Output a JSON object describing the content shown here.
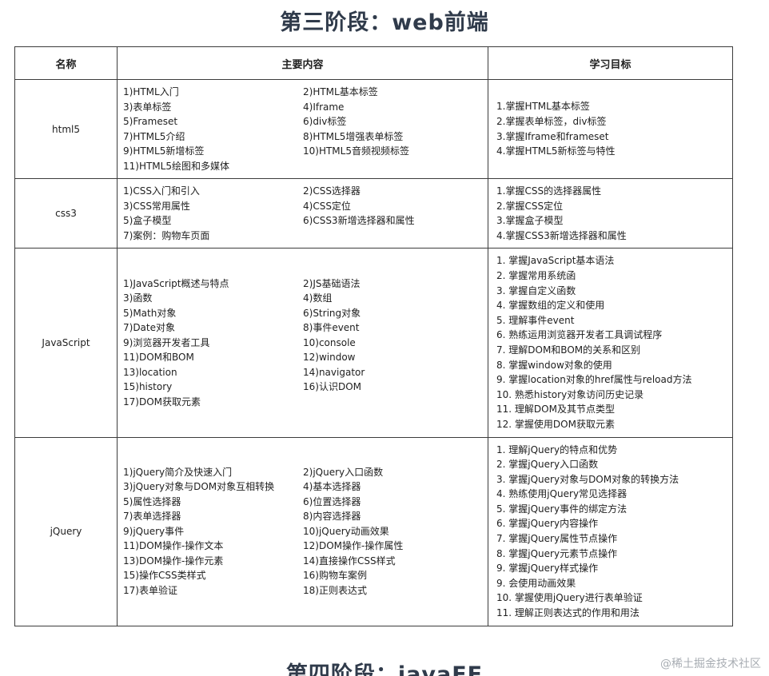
{
  "page": {
    "title": "第三阶段：web前端",
    "next_title": "第四阶段：javaEE",
    "watermark": "@稀土掘金技术社区"
  },
  "table": {
    "headers": [
      "名称",
      "主要内容",
      "学习目标"
    ],
    "rows": [
      {
        "name": "html5",
        "content_left": [
          "1)HTML入门",
          "3)表单标签",
          "5)Frameset",
          "7)HTML5介绍",
          "9)HTML5新增标签",
          "11)HTML5绘图和多媒体"
        ],
        "content_right": [
          "2)HTML基本标签",
          "4)Iframe",
          "6)div标签",
          "8)HTML5增强表单标签",
          "10)HTML5音频视频标签"
        ],
        "objectives": [
          "1.掌握HTML基本标签",
          "2.掌握表单标签，div标签",
          "3.掌握Iframe和frameset",
          "4.掌握HTML5新标签与特性"
        ]
      },
      {
        "name": "css3",
        "content_left": [
          "1)CSS入门和引入",
          "3)CSS常用属性",
          "5)盒子模型",
          "7)案例：购物车页面"
        ],
        "content_right": [
          "2)CSS选择器",
          "4)CSS定位",
          "6)CSS3新增选择器和属性"
        ],
        "objectives": [
          "1.掌握CSS的选择器属性",
          "2.掌握CSS定位",
          "3.掌握盒子模型",
          "4.掌握CSS3新增选择器和属性"
        ]
      },
      {
        "name": "JavaScript",
        "content_left": [
          "1)JavaScript概述与特点",
          "3)函数",
          "5)Math对象",
          "7)Date对象",
          "9)浏览器开发者工具",
          "11)DOM和BOM",
          "13)location",
          "15)history",
          "17)DOM获取元素"
        ],
        "content_right": [
          "2)JS基础语法",
          "4)数组",
          "6)String对象",
          "8)事件event",
          "10)console",
          "12)window",
          "14)navigator",
          "16)认识DOM"
        ],
        "objectives": [
          "1. 掌握JavaScript基本语法",
          "2. 掌握常用系统函",
          "3. 掌握自定义函数",
          "4. 掌握数组的定义和使用",
          "5. 理解事件event",
          "6. 熟练运用浏览器开发者工具调试程序",
          "7. 理解DOM和BOM的关系和区别",
          "8. 掌握window对象的使用",
          "9. 掌握location对象的href属性与reload方法",
          "10. 熟悉history对象访问历史记录",
          "11. 理解DOM及其节点类型",
          "12. 掌握使用DOM获取元素"
        ]
      },
      {
        "name": "jQuery",
        "content_left": [
          "1)jQuery简介及快速入门",
          "3)jQuery对象与DOM对象互相转换",
          "5)属性选择器",
          "7)表单选择器",
          "9)jQuery事件",
          "11)DOM操作-操作文本",
          "13)DOM操作-操作元素",
          "15)操作CSS类样式",
          "17)表单验证"
        ],
        "content_right": [
          "2)jQuery入口函数",
          "4)基本选择器",
          "6)位置选择器",
          "8)内容选择器",
          "10)jQuery动画效果",
          "12)DOM操作-操作属性",
          "14)直接操作CSS样式",
          "16)购物车案例",
          "18)正则表达式"
        ],
        "objectives": [
          "1. 理解jQuery的特点和优势",
          "2. 掌握jQuery入口函数",
          "3. 掌握jQuery对象与DOM对象的转换方法",
          "4. 熟练使用jQuery常见选择器",
          "5. 掌握jQuery事件的绑定方法",
          "6. 掌握jQuery内容操作",
          "7. 掌握jQuery属性节点操作",
          "8. 掌握jQuery元素节点操作",
          "9. 掌握jQuery样式操作",
          "9. 会使用动画效果",
          "10. 掌握使用jQuery进行表单验证",
          "11. 理解正则表达式的作用和用法"
        ]
      }
    ]
  }
}
